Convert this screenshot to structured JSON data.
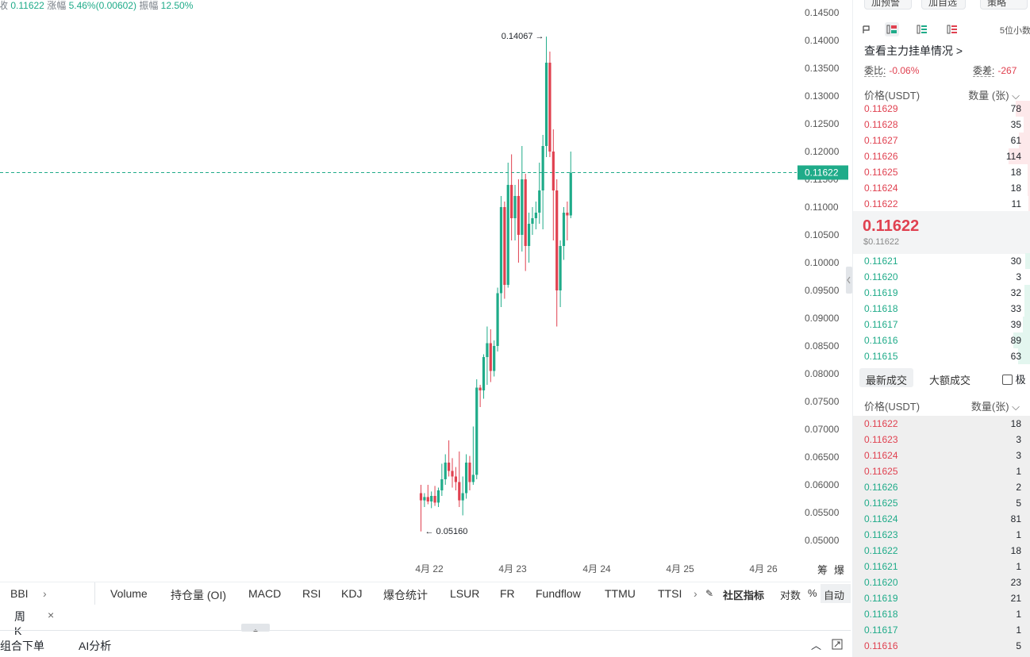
{
  "header": {
    "last_price_label": "收",
    "last_price": "0.11622",
    "change_label": "涨幅",
    "change_value": "5.46%(0.00602)",
    "amplitude_label": "振幅",
    "amplitude_value": "12.50%"
  },
  "chart_data": {
    "type": "candlestick",
    "current_price": 0.11622,
    "y_ticks": [
      "0.14500",
      "0.14000",
      "0.13500",
      "0.13000",
      "0.12500",
      "0.12000",
      "0.11500",
      "0.11000",
      "0.10500",
      "0.10000",
      "0.09500",
      "0.09000",
      "0.08500",
      "0.08000",
      "0.07500",
      "0.07000",
      "0.06500",
      "0.06000",
      "0.05500",
      "0.05000"
    ],
    "x_ticks": [
      "4月 22",
      "4月 23",
      "4月 24",
      "4月 25",
      "4月 26"
    ],
    "annotations": {
      "high": "0.14067",
      "low": "0.05160"
    },
    "candles": [
      {
        "o": 0.0585,
        "h": 0.06,
        "l": 0.0516,
        "c": 0.0572
      },
      {
        "o": 0.0572,
        "h": 0.0585,
        "l": 0.056,
        "c": 0.0578
      },
      {
        "o": 0.0578,
        "h": 0.06,
        "l": 0.0565,
        "c": 0.057
      },
      {
        "o": 0.057,
        "h": 0.0588,
        "l": 0.0558,
        "c": 0.058
      },
      {
        "o": 0.058,
        "h": 0.0598,
        "l": 0.0562,
        "c": 0.0568
      },
      {
        "o": 0.0568,
        "h": 0.0595,
        "l": 0.056,
        "c": 0.059
      },
      {
        "o": 0.059,
        "h": 0.0638,
        "l": 0.058,
        "c": 0.061
      },
      {
        "o": 0.061,
        "h": 0.0655,
        "l": 0.06,
        "c": 0.064
      },
      {
        "o": 0.064,
        "h": 0.068,
        "l": 0.0615,
        "c": 0.0625
      },
      {
        "o": 0.0625,
        "h": 0.0648,
        "l": 0.0595,
        "c": 0.0615
      },
      {
        "o": 0.0615,
        "h": 0.0632,
        "l": 0.059,
        "c": 0.0605
      },
      {
        "o": 0.0605,
        "h": 0.066,
        "l": 0.056,
        "c": 0.0572
      },
      {
        "o": 0.0572,
        "h": 0.0615,
        "l": 0.0545,
        "c": 0.0585
      },
      {
        "o": 0.0585,
        "h": 0.0655,
        "l": 0.0575,
        "c": 0.064
      },
      {
        "o": 0.064,
        "h": 0.0652,
        "l": 0.059,
        "c": 0.0605
      },
      {
        "o": 0.0605,
        "h": 0.0705,
        "l": 0.06,
        "c": 0.0618
      },
      {
        "o": 0.0618,
        "h": 0.079,
        "l": 0.061,
        "c": 0.0775
      },
      {
        "o": 0.0775,
        "h": 0.078,
        "l": 0.074,
        "c": 0.077
      },
      {
        "o": 0.077,
        "h": 0.0835,
        "l": 0.0755,
        "c": 0.083
      },
      {
        "o": 0.083,
        "h": 0.0885,
        "l": 0.078,
        "c": 0.0855
      },
      {
        "o": 0.0855,
        "h": 0.088,
        "l": 0.0785,
        "c": 0.0805
      },
      {
        "o": 0.0805,
        "h": 0.086,
        "l": 0.0795,
        "c": 0.085
      },
      {
        "o": 0.085,
        "h": 0.0955,
        "l": 0.084,
        "c": 0.0945
      },
      {
        "o": 0.0945,
        "h": 0.112,
        "l": 0.092,
        "c": 0.11
      },
      {
        "o": 0.11,
        "h": 0.111,
        "l": 0.0935,
        "c": 0.096
      },
      {
        "o": 0.096,
        "h": 0.118,
        "l": 0.0955,
        "c": 0.114
      },
      {
        "o": 0.114,
        "h": 0.1195,
        "l": 0.104,
        "c": 0.108
      },
      {
        "o": 0.108,
        "h": 0.114,
        "l": 0.104,
        "c": 0.112
      },
      {
        "o": 0.112,
        "h": 0.115,
        "l": 0.1,
        "c": 0.105
      },
      {
        "o": 0.105,
        "h": 0.121,
        "l": 0.102,
        "c": 0.115
      },
      {
        "o": 0.115,
        "h": 0.116,
        "l": 0.0985,
        "c": 0.103
      },
      {
        "o": 0.103,
        "h": 0.109,
        "l": 0.1,
        "c": 0.107
      },
      {
        "o": 0.107,
        "h": 0.11,
        "l": 0.105,
        "c": 0.108
      },
      {
        "o": 0.108,
        "h": 0.111,
        "l": 0.106,
        "c": 0.109
      },
      {
        "o": 0.109,
        "h": 0.118,
        "l": 0.107,
        "c": 0.113
      },
      {
        "o": 0.113,
        "h": 0.123,
        "l": 0.106,
        "c": 0.121
      },
      {
        "o": 0.121,
        "h": 0.1407,
        "l": 0.119,
        "c": 0.136
      },
      {
        "o": 0.136,
        "h": 0.138,
        "l": 0.119,
        "c": 0.12
      },
      {
        "o": 0.12,
        "h": 0.124,
        "l": 0.104,
        "c": 0.113
      },
      {
        "o": 0.113,
        "h": 0.115,
        "l": 0.0885,
        "c": 0.095
      },
      {
        "o": 0.095,
        "h": 0.104,
        "l": 0.092,
        "c": 0.103
      },
      {
        "o": 0.103,
        "h": 0.11,
        "l": 0.1005,
        "c": 0.109
      },
      {
        "o": 0.109,
        "h": 0.111,
        "l": 0.104,
        "c": 0.1085
      },
      {
        "o": 0.1085,
        "h": 0.12,
        "l": 0.108,
        "c": 0.1162
      }
    ]
  },
  "right_scale_extra": [
    "筹",
    "爆"
  ],
  "top_buttons": [
    "加预警",
    "加自选",
    "策略"
  ],
  "orderbook": {
    "decimals": "5位小数",
    "whale_link": "查看主力挂单情况 >",
    "ratio_label": "委比:",
    "ratio_value": "-0.06%",
    "diff_label": "委差:",
    "diff_value": "-267",
    "col_price": "价格(USDT)",
    "col_qty": "数量 (张)",
    "asks": [
      {
        "price": "0.11629",
        "qty": "78"
      },
      {
        "price": "0.11628",
        "qty": "35"
      },
      {
        "price": "0.11627",
        "qty": "61"
      },
      {
        "price": "0.11626",
        "qty": "114"
      },
      {
        "price": "0.11625",
        "qty": "18"
      },
      {
        "price": "0.11624",
        "qty": "18"
      },
      {
        "price": "0.11622",
        "qty": "11"
      }
    ],
    "mid_price": "0.11622",
    "mid_usd": "$0.11622",
    "bids": [
      {
        "price": "0.11621",
        "qty": "30"
      },
      {
        "price": "0.11620",
        "qty": "3"
      },
      {
        "price": "0.11619",
        "qty": "32"
      },
      {
        "price": "0.11618",
        "qty": "33"
      },
      {
        "price": "0.11617",
        "qty": "39"
      },
      {
        "price": "0.11616",
        "qty": "89"
      },
      {
        "price": "0.11615",
        "qty": "63"
      }
    ]
  },
  "trades": {
    "tab_latest": "最新成交",
    "tab_large": "大额成交",
    "tab_extreme": "极",
    "col_price": "价格(USDT)",
    "col_qty": "数量(张)",
    "rows": [
      {
        "price": "0.11622",
        "qty": "18",
        "side": "sell"
      },
      {
        "price": "0.11623",
        "qty": "3",
        "side": "sell"
      },
      {
        "price": "0.11624",
        "qty": "3",
        "side": "sell"
      },
      {
        "price": "0.11625",
        "qty": "1",
        "side": "sell"
      },
      {
        "price": "0.11626",
        "qty": "2",
        "side": "buy"
      },
      {
        "price": "0.11625",
        "qty": "5",
        "side": "buy"
      },
      {
        "price": "0.11624",
        "qty": "81",
        "side": "buy"
      },
      {
        "price": "0.11623",
        "qty": "1",
        "side": "buy"
      },
      {
        "price": "0.11622",
        "qty": "18",
        "side": "buy"
      },
      {
        "price": "0.11621",
        "qty": "1",
        "side": "buy"
      },
      {
        "price": "0.11620",
        "qty": "23",
        "side": "buy"
      },
      {
        "price": "0.11619",
        "qty": "21",
        "side": "buy"
      },
      {
        "price": "0.11618",
        "qty": "1",
        "side": "buy"
      },
      {
        "price": "0.11617",
        "qty": "1",
        "side": "buy"
      },
      {
        "price": "0.11616",
        "qty": "5",
        "side": "sell"
      }
    ]
  },
  "indicators": {
    "main": "BBI",
    "list": [
      "Volume",
      "持仓量 (OI)",
      "MACD",
      "RSI",
      "KDJ",
      "爆仓统计",
      "LSUR",
      "FR",
      "Fundflow",
      "TTMU",
      "TTSI"
    ],
    "community": "社区指标",
    "log_label": "对数",
    "pct_label": "%",
    "auto_label": "自动"
  },
  "period": {
    "label": "周K",
    "close": "×"
  },
  "bottom": {
    "combo_order": "组合下单",
    "ai": "AI分析"
  },
  "colors": {
    "up": "#1fab89",
    "down": "#e04150"
  }
}
